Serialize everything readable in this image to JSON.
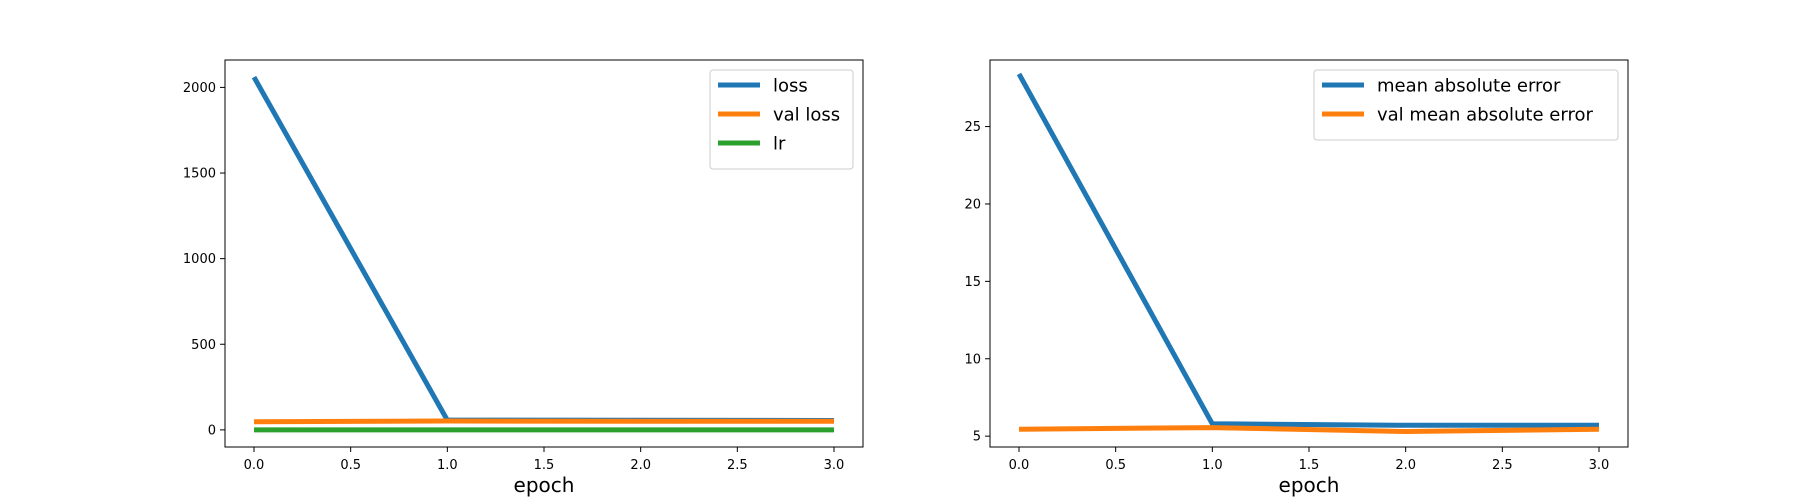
{
  "chart_data": [
    {
      "type": "line",
      "title": "",
      "xlabel": "epoch",
      "ylabel": "",
      "x": [
        0,
        1,
        2,
        3
      ],
      "xlim": [
        -0.15,
        3.15
      ],
      "ylim": [
        -100,
        2160
      ],
      "xticks": [
        0.0,
        0.5,
        1.0,
        1.5,
        2.0,
        2.5,
        3.0
      ],
      "xtick_labels": [
        "0.0",
        "0.5",
        "1.0",
        "1.5",
        "2.0",
        "2.5",
        "3.0"
      ],
      "yticks": [
        0,
        500,
        1000,
        1500,
        2000
      ],
      "ytick_labels": [
        "0",
        "500",
        "1000",
        "1500",
        "2000"
      ],
      "grid": false,
      "legend_position": "top-right",
      "series": [
        {
          "name": "loss",
          "color": "#1f77b4",
          "values": [
            2060,
            57,
            56,
            55
          ]
        },
        {
          "name": "val loss",
          "color": "#ff7f0e",
          "values": [
            47,
            52,
            50,
            50
          ]
        },
        {
          "name": "lr",
          "color": "#2ca02c",
          "values": [
            0.001,
            0.001,
            0.001,
            0.001
          ]
        }
      ]
    },
    {
      "type": "line",
      "title": "",
      "xlabel": "epoch",
      "ylabel": "",
      "x": [
        0,
        1,
        2,
        3
      ],
      "xlim": [
        -0.15,
        3.15
      ],
      "ylim": [
        4.3,
        29.3
      ],
      "xticks": [
        0.0,
        0.5,
        1.0,
        1.5,
        2.0,
        2.5,
        3.0
      ],
      "xtick_labels": [
        "0.0",
        "0.5",
        "1.0",
        "1.5",
        "2.0",
        "2.5",
        "3.0"
      ],
      "yticks": [
        5,
        10,
        15,
        20,
        25
      ],
      "ytick_labels": [
        "5",
        "10",
        "15",
        "20",
        "25"
      ],
      "grid": false,
      "legend_position": "top-right",
      "series": [
        {
          "name": "mean absolute error",
          "color": "#1f77b4",
          "values": [
            28.4,
            5.8,
            5.7,
            5.7
          ]
        },
        {
          "name": "val mean absolute error",
          "color": "#ff7f0e",
          "values": [
            5.45,
            5.55,
            5.3,
            5.45
          ]
        }
      ]
    }
  ]
}
